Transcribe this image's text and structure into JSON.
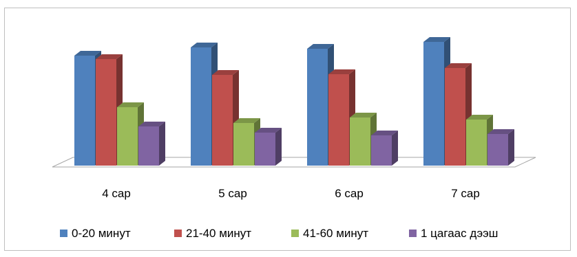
{
  "chart_data": {
    "type": "bar",
    "title": "",
    "xlabel": "",
    "ylabel": "",
    "categories": [
      "4 сар",
      "5 сар",
      "6 сар",
      "7 сар"
    ],
    "series": [
      {
        "name": "0-20 минут",
        "values": [
          160,
          172,
          170,
          180
        ]
      },
      {
        "name": "21-40 минут",
        "values": [
          155,
          132,
          133,
          142
        ]
      },
      {
        "name": "41-60 минут",
        "values": [
          85,
          62,
          70,
          67
        ]
      },
      {
        "name": "1 цагаас дээш",
        "values": [
          57,
          48,
          44,
          46
        ]
      }
    ],
    "ylim": [
      0,
      180
    ],
    "grid": false,
    "legend_position": "bottom",
    "colors": [
      "#4f81bd",
      "#c0504d",
      "#9bbb59",
      "#8064a2"
    ]
  }
}
